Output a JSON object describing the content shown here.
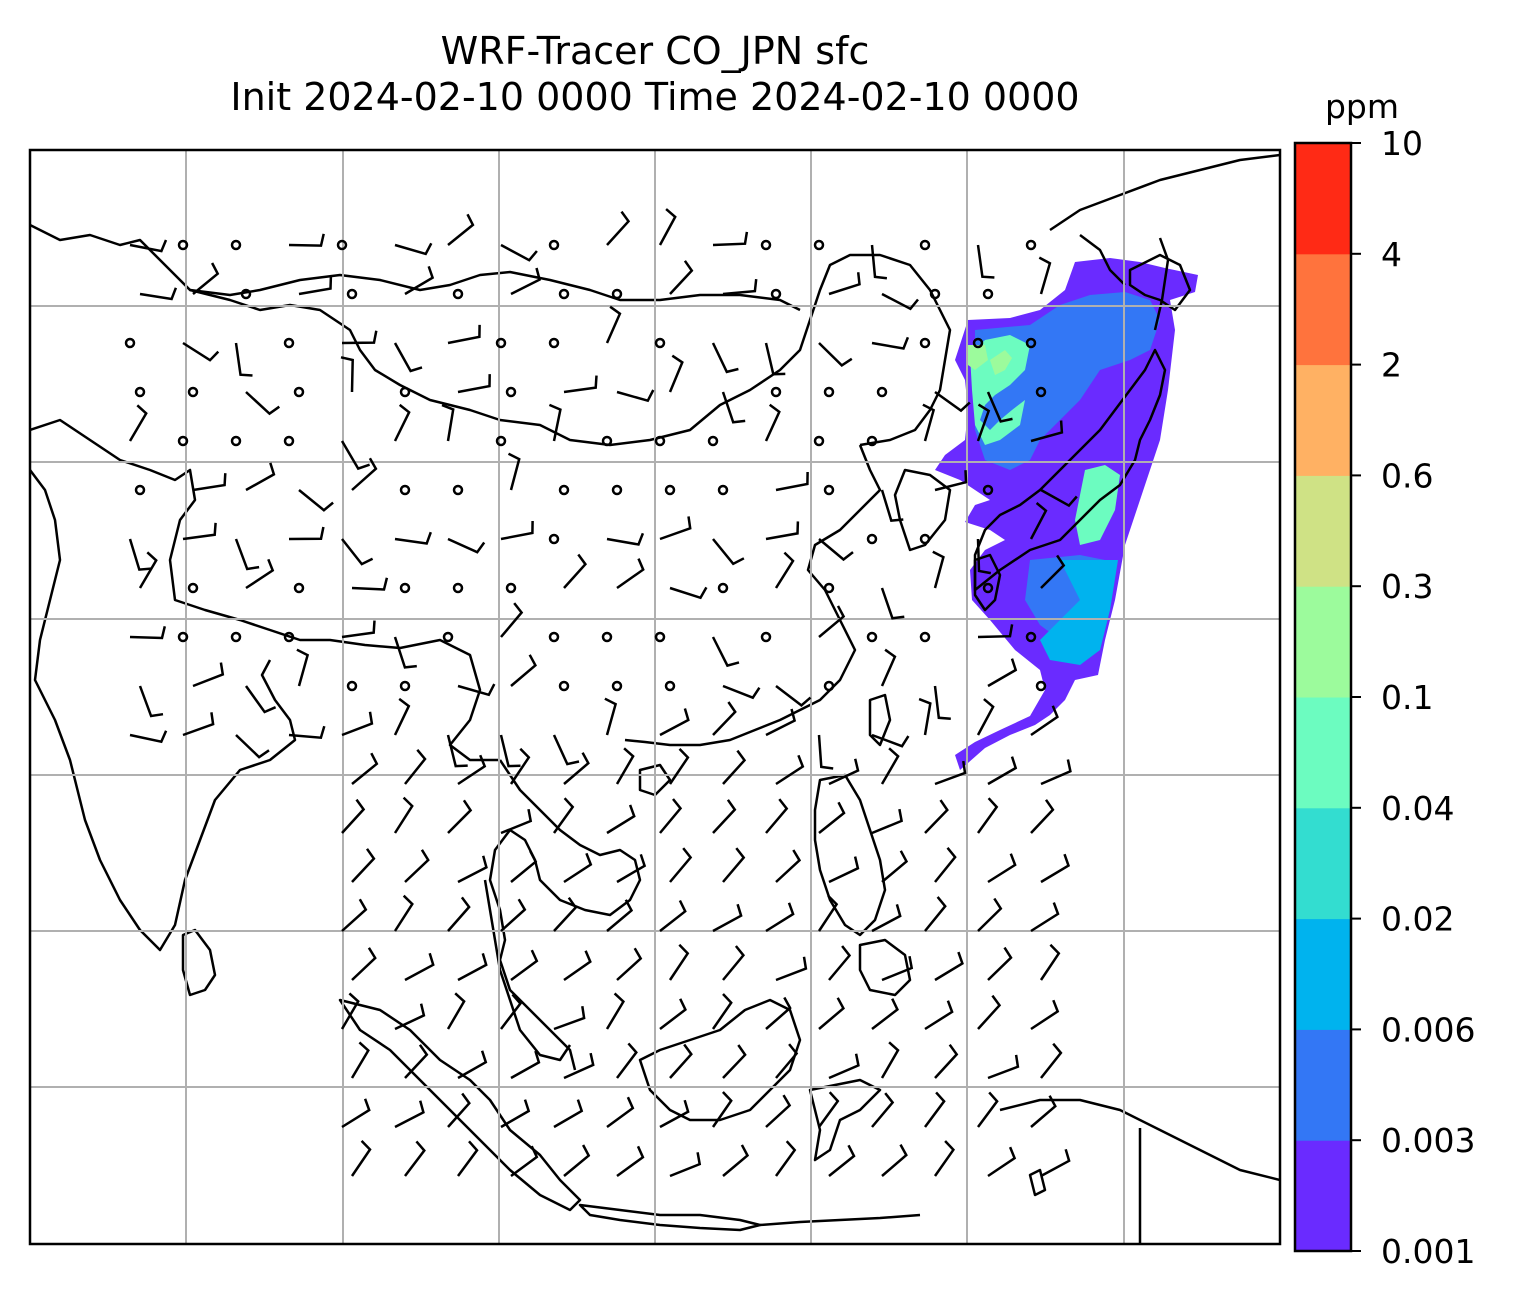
{
  "title": {
    "line1": "WRF-Tracer CO_JPN sfc",
    "line2": "Init 2024-02-10 0000 Time 2024-02-10 0000"
  },
  "colorbar": {
    "unit": "ppm",
    "levels": [
      "0.001",
      "0.003",
      "0.006",
      "0.02",
      "0.04",
      "0.1",
      "0.3",
      "0.6",
      "2",
      "4",
      "10"
    ],
    "colors": [
      "#6a2bff",
      "#3377f5",
      "#00b3ee",
      "#33ddd0",
      "#6cfcc0",
      "#9cfb9c",
      "#cfe285",
      "#ffb163",
      "#ff733d",
      "#ff2a15"
    ]
  },
  "map": {
    "region": "East Asia / Southeast Asia",
    "grid": true,
    "coastline_color": "#000000",
    "gridline_color": "#b0b0b0",
    "tracer_plume_location": "Japan and surrounding ocean"
  }
}
